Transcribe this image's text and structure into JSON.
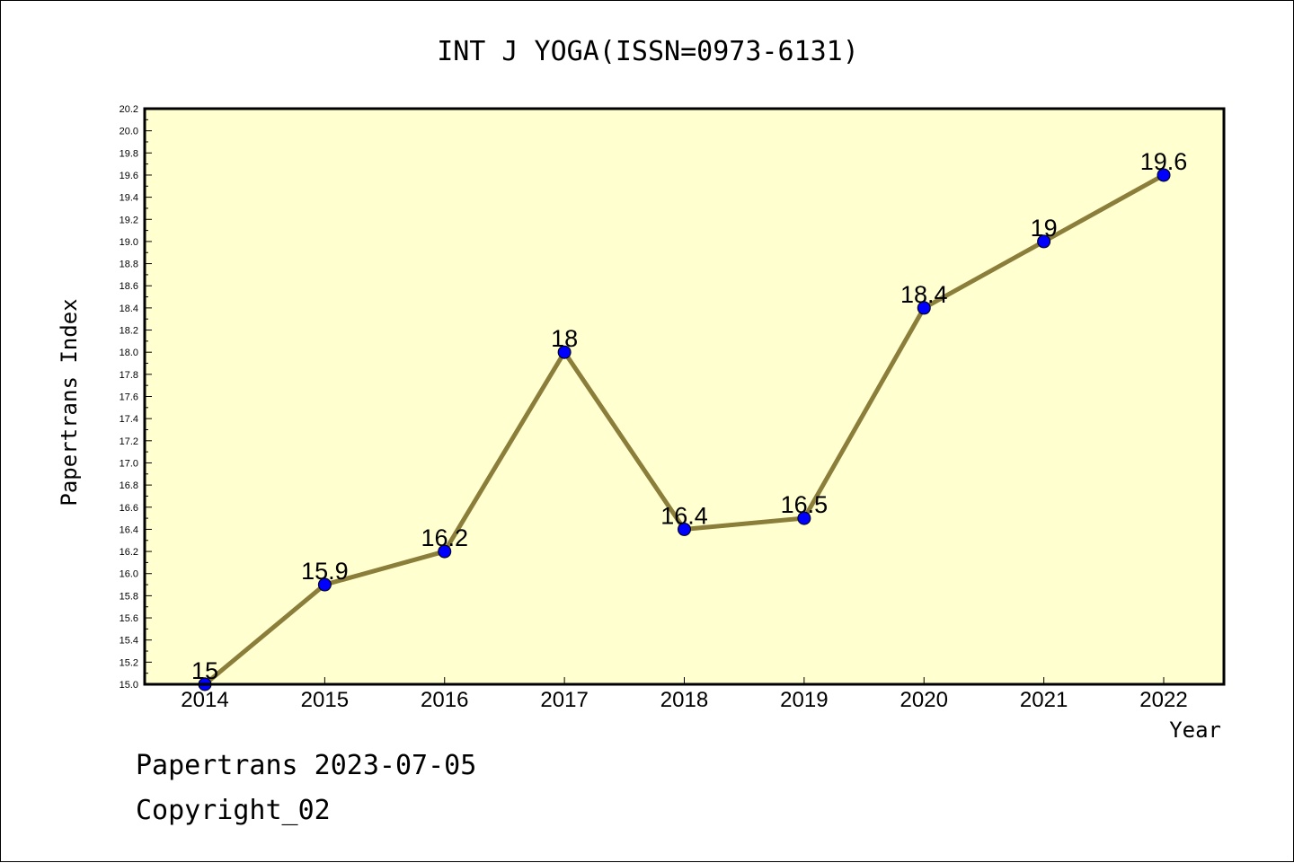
{
  "colors": {
    "plot_background": "#ffffd0",
    "line": "#8b7d3a",
    "marker": "#0000ff",
    "axis": "#000000"
  },
  "footer": {
    "line1": "Papertrans 2023-07-05",
    "line2": "Copyright_02"
  },
  "chart_data": {
    "type": "line",
    "title": "INT J YOGA(ISSN=0973-6131)",
    "xlabel": "Year",
    "ylabel": "Papertrans Index",
    "categories": [
      "2014",
      "2015",
      "2016",
      "2017",
      "2018",
      "2019",
      "2020",
      "2021",
      "2022"
    ],
    "series": [
      {
        "values": [
          15,
          15.9,
          16.2,
          18,
          16.4,
          16.5,
          18.4,
          19,
          19.6
        ],
        "labels": [
          "15",
          "15.9",
          "16.2",
          "18",
          "16.4",
          "16.5",
          "18.4",
          "19",
          "19.6"
        ]
      }
    ],
    "ylim": [
      15.0,
      20.2
    ],
    "yticks": [
      "15.0",
      "15.2",
      "15.4",
      "15.6",
      "15.8",
      "16.0",
      "16.2",
      "16.4",
      "16.6",
      "16.8",
      "17.0",
      "17.2",
      "17.4",
      "17.6",
      "17.8",
      "18.0",
      "18.2",
      "18.4",
      "18.6",
      "18.8",
      "19.0",
      "19.2",
      "19.4",
      "19.6",
      "19.8",
      "20.0",
      "20.2"
    ],
    "grid": false,
    "legend": "none"
  }
}
